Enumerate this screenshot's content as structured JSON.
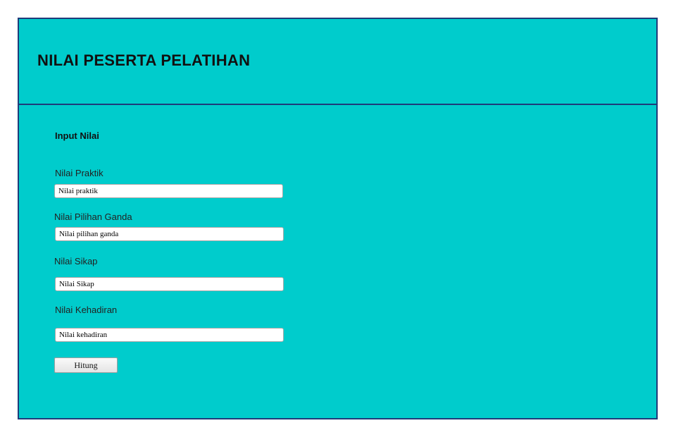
{
  "header": {
    "title": "NILAI PESERTA PELATIHAN"
  },
  "form": {
    "section_title": "Input Nilai",
    "fields": [
      {
        "label": "Nilai Praktik",
        "placeholder": "Nilai praktik",
        "value": ""
      },
      {
        "label": "Nilai Pilihan Ganda",
        "placeholder": "Nilai pilihan ganda",
        "value": ""
      },
      {
        "label": "Nilai Sikap",
        "placeholder": "Nilai Sikap",
        "value": ""
      },
      {
        "label": "Nilai Kehadiran",
        "placeholder": "Nilai kehadiran",
        "value": ""
      }
    ],
    "submit_label": "Hitung"
  },
  "colors": {
    "background": "#00cccc",
    "border": "#1f3b7a"
  }
}
